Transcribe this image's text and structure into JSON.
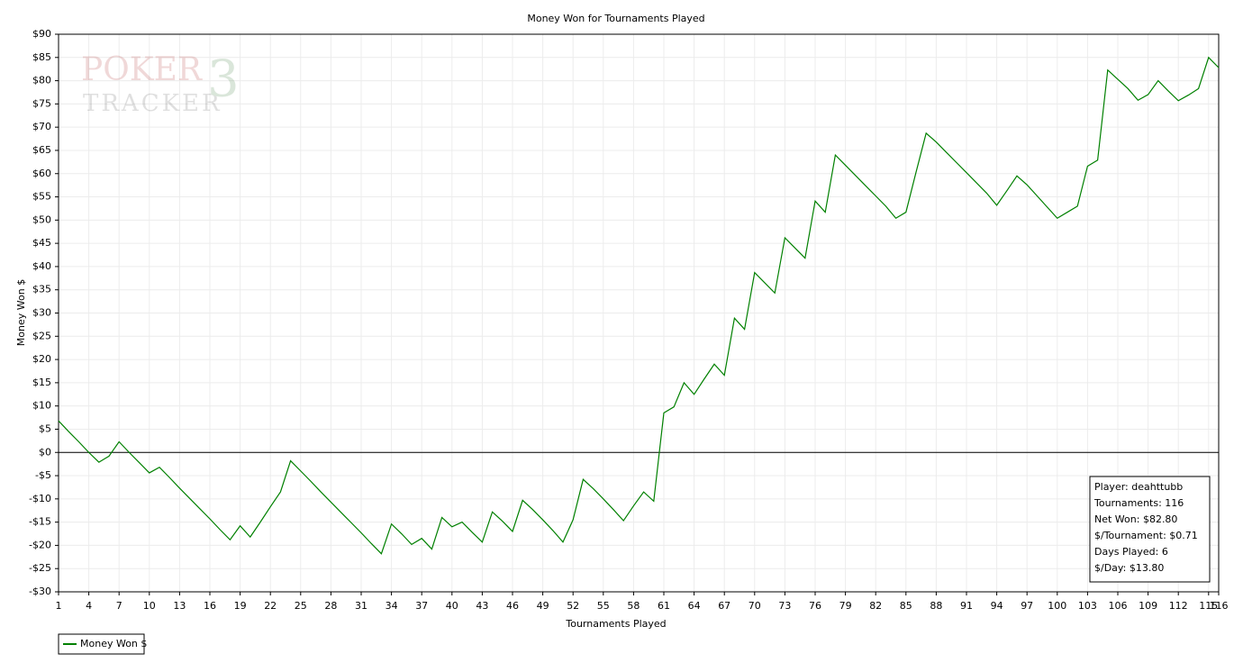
{
  "chart_data": {
    "type": "line",
    "title": "Money Won for Tournaments Played",
    "x_label": "Tournaments Played",
    "y_label": "Money Won $",
    "watermark": [
      "POKER",
      "TRACKER",
      "3"
    ],
    "x": [
      1,
      2,
      3,
      4,
      5,
      6,
      7,
      8,
      9,
      10,
      11,
      12,
      13,
      14,
      15,
      16,
      17,
      18,
      19,
      20,
      21,
      22,
      23,
      24,
      25,
      26,
      27,
      28,
      29,
      30,
      31,
      32,
      33,
      34,
      35,
      36,
      37,
      38,
      39,
      40,
      41,
      42,
      43,
      44,
      45,
      46,
      47,
      48,
      49,
      50,
      51,
      52,
      53,
      54,
      55,
      56,
      57,
      58,
      59,
      60,
      61,
      62,
      63,
      64,
      65,
      66,
      67,
      68,
      69,
      70,
      71,
      72,
      73,
      74,
      75,
      76,
      77,
      78,
      79,
      80,
      81,
      82,
      83,
      84,
      85,
      86,
      87,
      88,
      89,
      90,
      91,
      92,
      93,
      94,
      95,
      96,
      97,
      98,
      99,
      100,
      101,
      102,
      103,
      104,
      105,
      106,
      107,
      108,
      109,
      110,
      111,
      112,
      113,
      114,
      115,
      116
    ],
    "series": [
      {
        "name": "Money Won $",
        "color": "#008000",
        "values": [
          6.8,
          4.5,
          2.3,
          0,
          -2.1,
          -0.8,
          2.3,
          0,
          -2.2,
          -4.4,
          -3.2,
          -5.4,
          -7.7,
          -9.9,
          -12.1,
          -14.3,
          -16.6,
          -18.8,
          -15.8,
          -18.2,
          -15,
          -11.7,
          -8.5,
          -1.8,
          -4,
          -6.2,
          -8.5,
          -10.7,
          -12.9,
          -15.1,
          -17.3,
          -19.6,
          -21.8,
          -15.4,
          -17.5,
          -19.8,
          -18.5,
          -20.8,
          -14,
          -16,
          -15,
          -17.2,
          -19.3,
          -12.8,
          -14.8,
          -17,
          -10.3,
          -12.3,
          -14.5,
          -16.8,
          -19.3,
          -14.5,
          -5.8,
          -7.8,
          -10,
          -12.3,
          -14.7,
          -11.5,
          -8.5,
          -10.5,
          8.5,
          9.8,
          15,
          12.5,
          15.8,
          19,
          16.6,
          28.9,
          26.5,
          38.7,
          36.5,
          34.3,
          46.2,
          44,
          41.8,
          54.1,
          51.7,
          64,
          61.8,
          59.6,
          57.4,
          55.2,
          53,
          50.4,
          51.7,
          60.3,
          68.7,
          66.8,
          64.6,
          62.4,
          60.2,
          58,
          55.8,
          53.2,
          56.3,
          59.5,
          57.6,
          55.2,
          52.8,
          50.4,
          51.7,
          53,
          61.6,
          62.9,
          82.3,
          80.3,
          78.3,
          75.8,
          77,
          80,
          77.8,
          75.7,
          76.9,
          78.3,
          85,
          82.8
        ]
      }
    ],
    "xlim": [
      1,
      116
    ],
    "xticks": [
      1,
      4,
      7,
      10,
      13,
      16,
      19,
      22,
      25,
      28,
      31,
      34,
      37,
      40,
      43,
      46,
      49,
      52,
      55,
      58,
      61,
      64,
      67,
      70,
      73,
      76,
      79,
      82,
      85,
      88,
      91,
      94,
      97,
      100,
      103,
      106,
      109,
      112,
      115,
      116
    ],
    "ylim": [
      -30,
      90
    ],
    "yticks": [
      {
        "value": 90,
        "label": "$90"
      },
      {
        "value": 85,
        "label": "$85"
      },
      {
        "value": 80,
        "label": "$80"
      },
      {
        "value": 75,
        "label": "$75"
      },
      {
        "value": 70,
        "label": "$70"
      },
      {
        "value": 65,
        "label": "$65"
      },
      {
        "value": 60,
        "label": "$60"
      },
      {
        "value": 55,
        "label": "$55"
      },
      {
        "value": 50,
        "label": "$50"
      },
      {
        "value": 45,
        "label": "$45"
      },
      {
        "value": 40,
        "label": "$40"
      },
      {
        "value": 35,
        "label": "$35"
      },
      {
        "value": 30,
        "label": "$30"
      },
      {
        "value": 25,
        "label": "$25"
      },
      {
        "value": 20,
        "label": "$20"
      },
      {
        "value": 15,
        "label": "$15"
      },
      {
        "value": 10,
        "label": "$10"
      },
      {
        "value": 5,
        "label": "$5"
      },
      {
        "value": 0,
        "label": "$0"
      },
      {
        "value": -5,
        "label": "-$5"
      },
      {
        "value": -10,
        "label": "-$10"
      },
      {
        "value": -15,
        "label": "-$15"
      },
      {
        "value": -20,
        "label": "-$20"
      },
      {
        "value": -25,
        "label": "-$25"
      },
      {
        "value": -30,
        "label": "-$30"
      }
    ],
    "grid": true,
    "info_box": [
      "Player: deahttubb",
      "Tournaments: 116",
      "Net Won: $82.80",
      "$/Tournament: $0.71",
      "Days Played: 6",
      "$/Day: $13.80"
    ]
  }
}
